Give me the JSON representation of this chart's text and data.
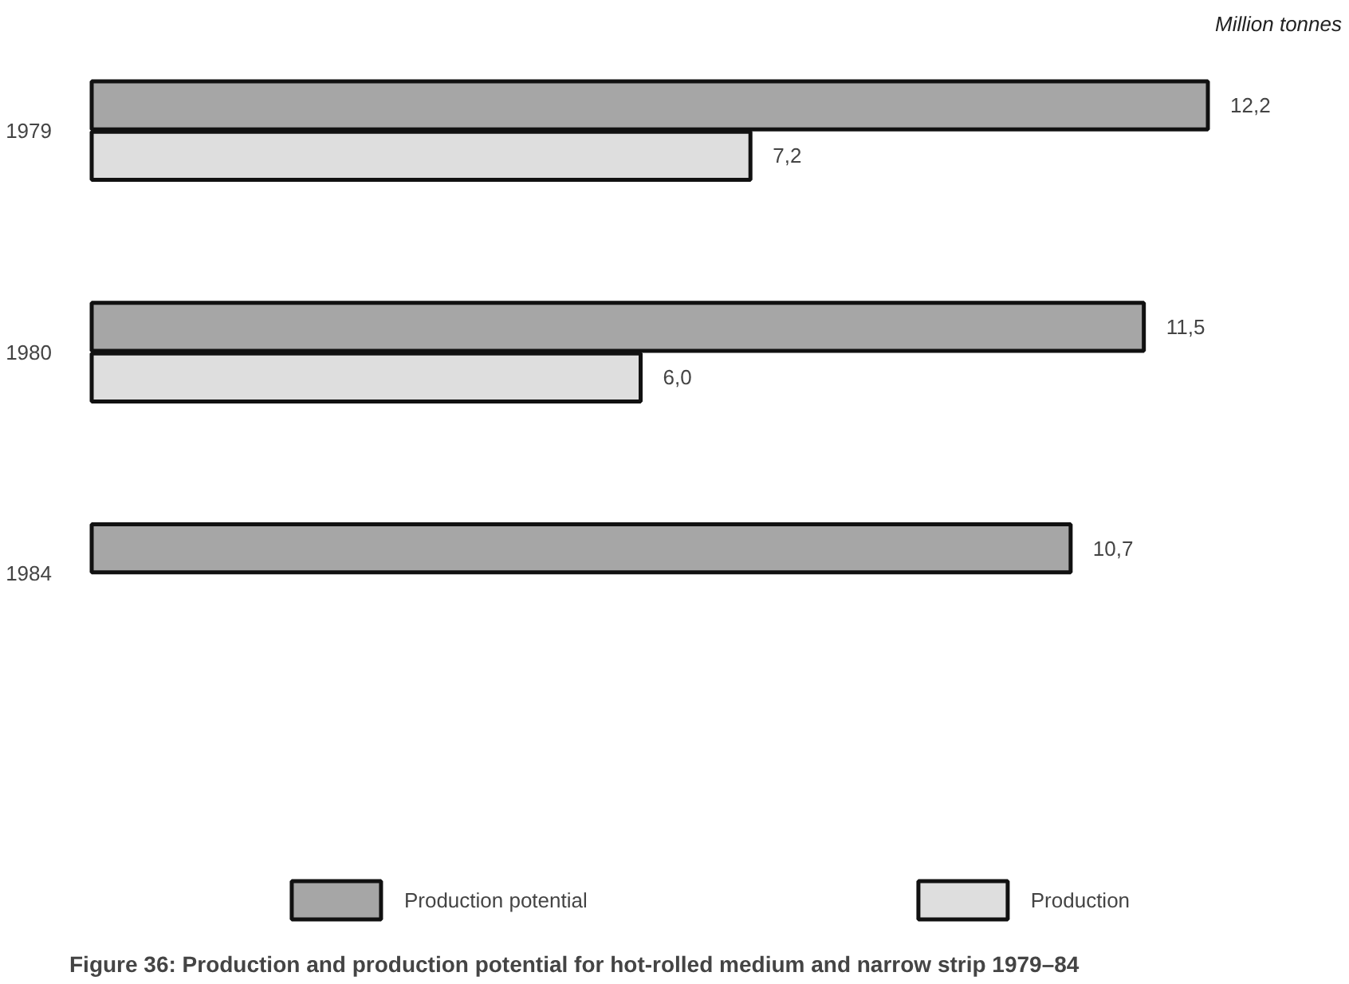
{
  "chart_data": {
    "type": "bar",
    "orientation": "horizontal",
    "title": "Figure 36: Production and production potential for hot-rolled medium and narrow strip 1979–84",
    "annotations": [
      "Million tonnes"
    ],
    "categories": [
      "1979",
      "1980",
      "1984"
    ],
    "series": [
      {
        "name": "Production potential",
        "color": "#a6a6a6",
        "values": [
          12.2,
          11.5,
          10.7
        ],
        "value_labels": [
          "12,2",
          "11,5",
          "10,7"
        ]
      },
      {
        "name": "Production",
        "color": "#dedede",
        "values": [
          7.2,
          6.0,
          null
        ],
        "value_labels": [
          "7,2",
          "6,0",
          null
        ]
      }
    ],
    "legend": "bottom",
    "grid": false
  }
}
